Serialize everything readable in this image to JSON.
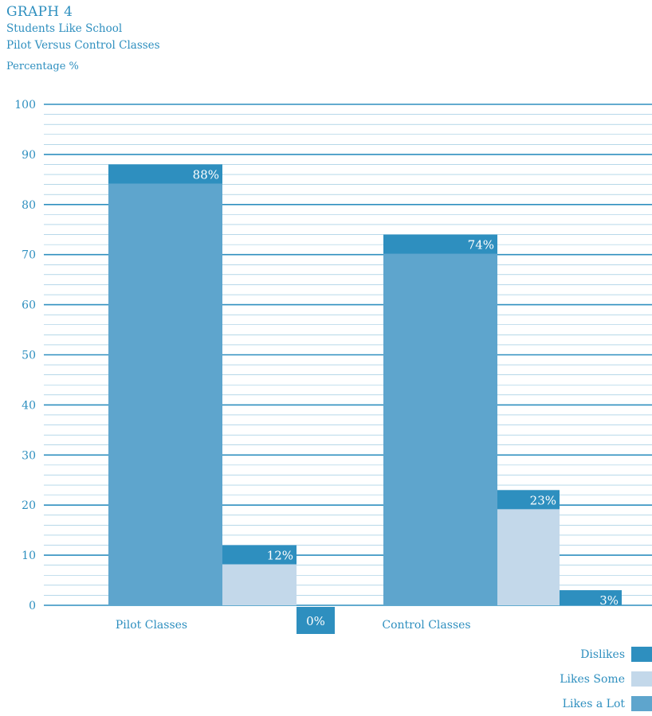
{
  "header": {
    "title": "GRAPH 4",
    "subtitle_line1": "Students Like School",
    "subtitle_line2": "Pilot Versus Control Classes",
    "ylabel": "Percentage %"
  },
  "colors": {
    "dislikes": "#2e8fbf",
    "likes_some": "#c3d8ea",
    "likes_a_lot": "#5ea5cd",
    "grid": "#2e8fbf",
    "text": "#2e8fbf"
  },
  "chart_data": {
    "type": "bar",
    "categories": [
      "Pilot Classes",
      "Control Classes"
    ],
    "ylim": [
      0,
      100
    ],
    "yticks": [
      0,
      10,
      20,
      30,
      40,
      50,
      60,
      70,
      80,
      90,
      100
    ],
    "grid": true,
    "legend_position": "bottom-right",
    "series": [
      {
        "name": "Likes a Lot",
        "key": "likes_a_lot",
        "values": [
          88,
          74
        ],
        "labels": [
          "88%",
          "74%"
        ]
      },
      {
        "name": "Likes Some",
        "key": "likes_some",
        "values": [
          12,
          23
        ],
        "labels": [
          "12%",
          "23%"
        ]
      },
      {
        "name": "Dislikes",
        "key": "dislikes",
        "values": [
          0,
          3
        ],
        "labels": [
          "0%",
          "3%"
        ]
      }
    ]
  },
  "legend": {
    "items": [
      {
        "label": "Dislikes",
        "key": "dislikes"
      },
      {
        "label": "Likes Some",
        "key": "likes_some"
      },
      {
        "label": "Likes a Lot",
        "key": "likes_a_lot"
      }
    ]
  }
}
